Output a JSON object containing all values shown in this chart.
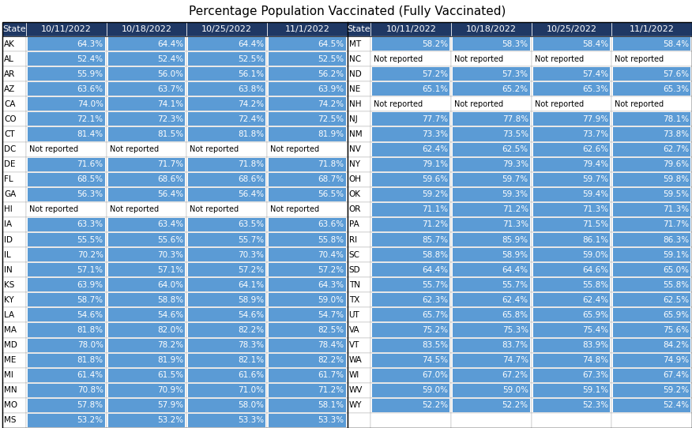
{
  "title": "Percentage Population Vaccinated (Fully Vaccinated)",
  "header_cols": [
    "State",
    "10/11/2022",
    "10/18/2022",
    "10/25/2022",
    "11/1/2022"
  ],
  "left_data": [
    [
      "AK",
      "64.3%",
      "64.4%",
      "64.4%",
      "64.5%"
    ],
    [
      "AL",
      "52.4%",
      "52.4%",
      "52.5%",
      "52.5%"
    ],
    [
      "AR",
      "55.9%",
      "56.0%",
      "56.1%",
      "56.2%"
    ],
    [
      "AZ",
      "63.6%",
      "63.7%",
      "63.8%",
      "63.9%"
    ],
    [
      "CA",
      "74.0%",
      "74.1%",
      "74.2%",
      "74.2%"
    ],
    [
      "CO",
      "72.1%",
      "72.3%",
      "72.4%",
      "72.5%"
    ],
    [
      "CT",
      "81.4%",
      "81.5%",
      "81.8%",
      "81.9%"
    ],
    [
      "DC",
      "Not reported",
      "Not reported",
      "Not reported",
      "Not reported"
    ],
    [
      "DE",
      "71.6%",
      "71.7%",
      "71.8%",
      "71.8%"
    ],
    [
      "FL",
      "68.5%",
      "68.6%",
      "68.6%",
      "68.7%"
    ],
    [
      "GA",
      "56.3%",
      "56.4%",
      "56.4%",
      "56.5%"
    ],
    [
      "HI",
      "Not reported",
      "Not reported",
      "Not reported",
      "Not reported"
    ],
    [
      "IA",
      "63.3%",
      "63.4%",
      "63.5%",
      "63.6%"
    ],
    [
      "ID",
      "55.5%",
      "55.6%",
      "55.7%",
      "55.8%"
    ],
    [
      "IL",
      "70.2%",
      "70.3%",
      "70.3%",
      "70.4%"
    ],
    [
      "IN",
      "57.1%",
      "57.1%",
      "57.2%",
      "57.2%"
    ],
    [
      "KS",
      "63.9%",
      "64.0%",
      "64.1%",
      "64.3%"
    ],
    [
      "KY",
      "58.7%",
      "58.8%",
      "58.9%",
      "59.0%"
    ],
    [
      "LA",
      "54.6%",
      "54.6%",
      "54.6%",
      "54.7%"
    ],
    [
      "MA",
      "81.8%",
      "82.0%",
      "82.2%",
      "82.5%"
    ],
    [
      "MD",
      "78.0%",
      "78.2%",
      "78.3%",
      "78.4%"
    ],
    [
      "ME",
      "81.8%",
      "81.9%",
      "82.1%",
      "82.2%"
    ],
    [
      "MI",
      "61.4%",
      "61.5%",
      "61.6%",
      "61.7%"
    ],
    [
      "MN",
      "70.8%",
      "70.9%",
      "71.0%",
      "71.2%"
    ],
    [
      "MO",
      "57.8%",
      "57.9%",
      "58.0%",
      "58.1%"
    ],
    [
      "MS",
      "53.2%",
      "53.2%",
      "53.3%",
      "53.3%"
    ]
  ],
  "right_data": [
    [
      "MT",
      "58.2%",
      "58.3%",
      "58.4%",
      "58.4%"
    ],
    [
      "NC",
      "Not reported",
      "Not reported",
      "Not reported",
      "Not reported"
    ],
    [
      "ND",
      "57.2%",
      "57.3%",
      "57.4%",
      "57.6%"
    ],
    [
      "NE",
      "65.1%",
      "65.2%",
      "65.3%",
      "65.3%"
    ],
    [
      "NH",
      "Not reported",
      "Not reported",
      "Not reported",
      "Not reported"
    ],
    [
      "NJ",
      "77.7%",
      "77.8%",
      "77.9%",
      "78.1%"
    ],
    [
      "NM",
      "73.3%",
      "73.5%",
      "73.7%",
      "73.8%"
    ],
    [
      "NV",
      "62.4%",
      "62.5%",
      "62.6%",
      "62.7%"
    ],
    [
      "NY",
      "79.1%",
      "79.3%",
      "79.4%",
      "79.6%"
    ],
    [
      "OH",
      "59.6%",
      "59.7%",
      "59.7%",
      "59.8%"
    ],
    [
      "OK",
      "59.2%",
      "59.3%",
      "59.4%",
      "59.5%"
    ],
    [
      "OR",
      "71.1%",
      "71.2%",
      "71.3%",
      "71.3%"
    ],
    [
      "PA",
      "71.2%",
      "71.3%",
      "71.5%",
      "71.7%"
    ],
    [
      "RI",
      "85.7%",
      "85.9%",
      "86.1%",
      "86.3%"
    ],
    [
      "SC",
      "58.8%",
      "58.9%",
      "59.0%",
      "59.1%"
    ],
    [
      "SD",
      "64.4%",
      "64.4%",
      "64.6%",
      "65.0%"
    ],
    [
      "TN",
      "55.7%",
      "55.7%",
      "55.8%",
      "55.8%"
    ],
    [
      "TX",
      "62.3%",
      "62.4%",
      "62.4%",
      "62.5%"
    ],
    [
      "UT",
      "65.7%",
      "65.8%",
      "65.9%",
      "65.9%"
    ],
    [
      "VA",
      "75.2%",
      "75.3%",
      "75.4%",
      "75.6%"
    ],
    [
      "VT",
      "83.5%",
      "83.7%",
      "83.9%",
      "84.2%"
    ],
    [
      "WA",
      "74.5%",
      "74.7%",
      "74.8%",
      "74.9%"
    ],
    [
      "WI",
      "67.0%",
      "67.2%",
      "67.3%",
      "67.4%"
    ],
    [
      "WV",
      "59.0%",
      "59.0%",
      "59.1%",
      "59.2%"
    ],
    [
      "WY",
      "52.2%",
      "52.2%",
      "52.3%",
      "52.4%"
    ],
    [
      "",
      "",
      "",
      "",
      ""
    ]
  ],
  "header_bg": "#1F3864",
  "header_fg": "#FFFFFF",
  "data_bg": "#5B9BD5",
  "data_fg": "#FFFFFF",
  "cell_bg": "#FFFFFF",
  "state_fg": "#000000",
  "not_reported_fg": "#000000",
  "title_fg": "#000000",
  "divider_color": "#000000",
  "title_fontsize": 11,
  "header_fontsize": 8,
  "cell_fontsize": 7.5,
  "state_fontsize": 7.5
}
